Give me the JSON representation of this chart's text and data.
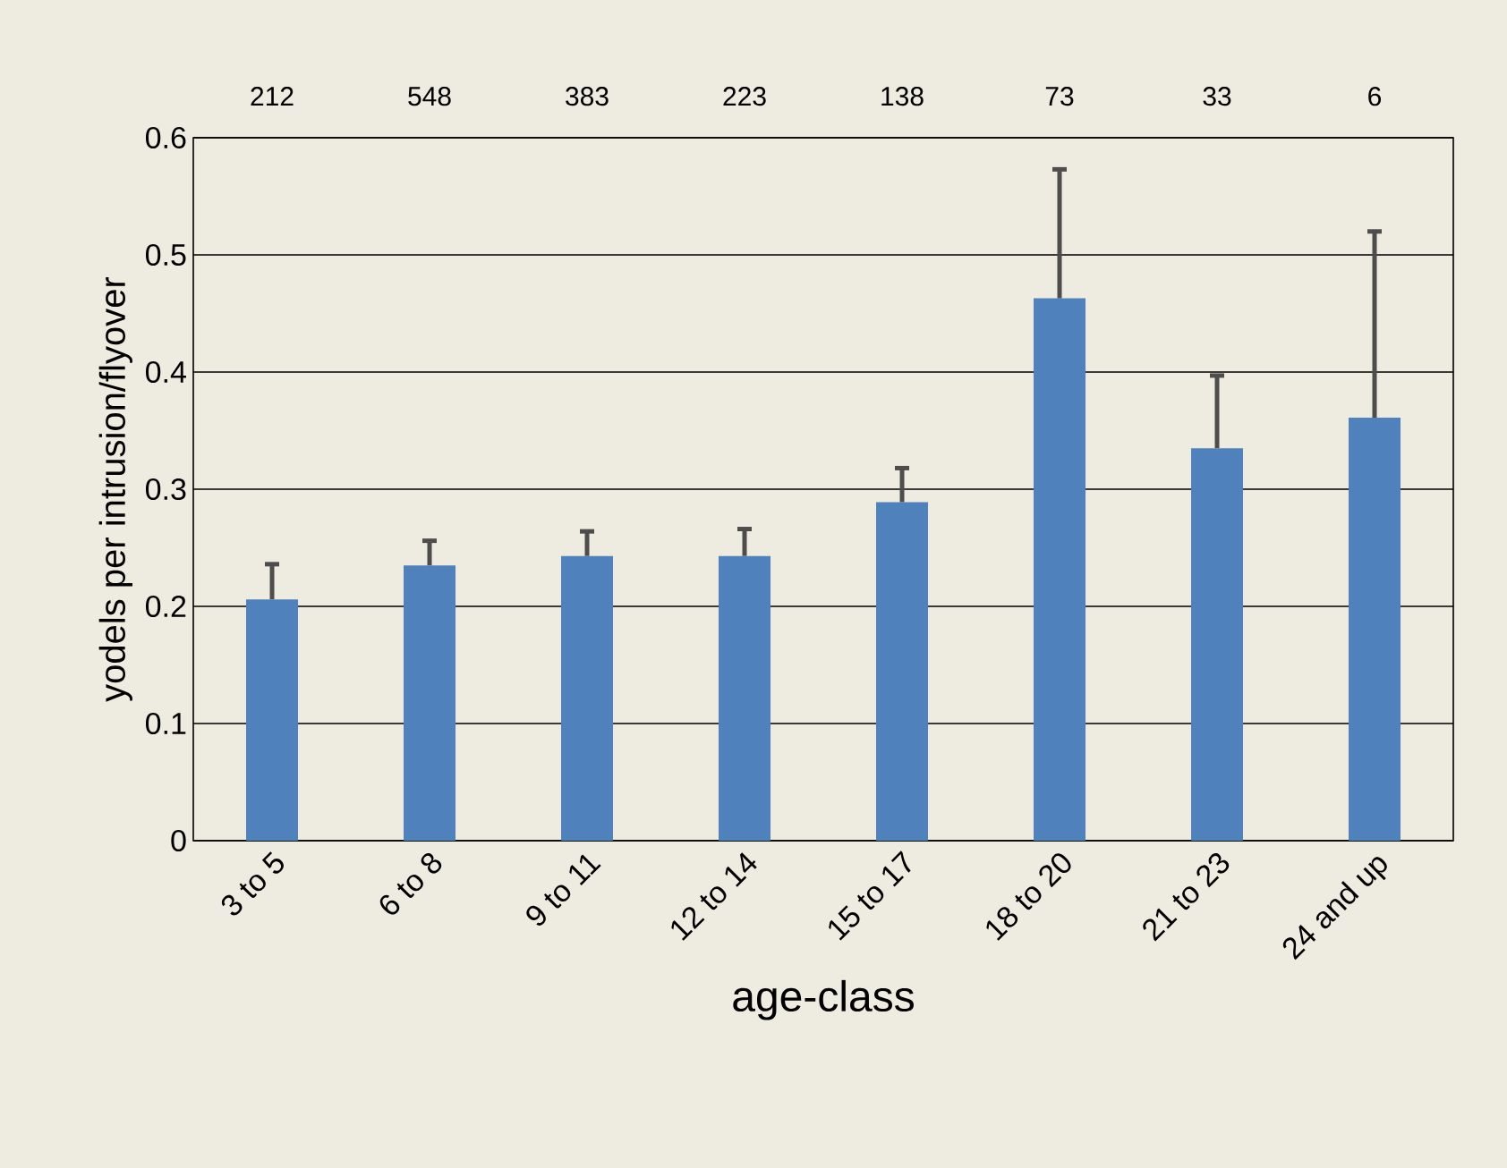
{
  "chart_data": {
    "type": "bar",
    "xlabel": "age-class",
    "ylabel": "yodels per intrusion/flyover",
    "categories": [
      "3 to 5",
      "6 to 8",
      "9 to 11",
      "12 to 14",
      "15 to 17",
      "18 to 20",
      "21 to 23",
      "24 and up"
    ],
    "values": [
      0.206,
      0.235,
      0.243,
      0.243,
      0.289,
      0.463,
      0.335,
      0.361
    ],
    "errors": [
      [
        0.206,
        0.236
      ],
      [
        0.235,
        0.256
      ],
      [
        0.243,
        0.264
      ],
      [
        0.243,
        0.266
      ],
      [
        0.289,
        0.318
      ],
      [
        0.463,
        0.573
      ],
      [
        0.335,
        0.397
      ],
      [
        0.361,
        0.52
      ]
    ],
    "color": "#4f81bd",
    "ylim": [
      0,
      0.6
    ],
    "yticks": [
      0,
      0.1,
      0.2,
      0.3,
      0.4,
      0.5,
      0.6
    ],
    "grid": "y",
    "annotations": [
      "212",
      "548",
      "383",
      "223",
      "138",
      "73",
      "33",
      "6"
    ]
  }
}
